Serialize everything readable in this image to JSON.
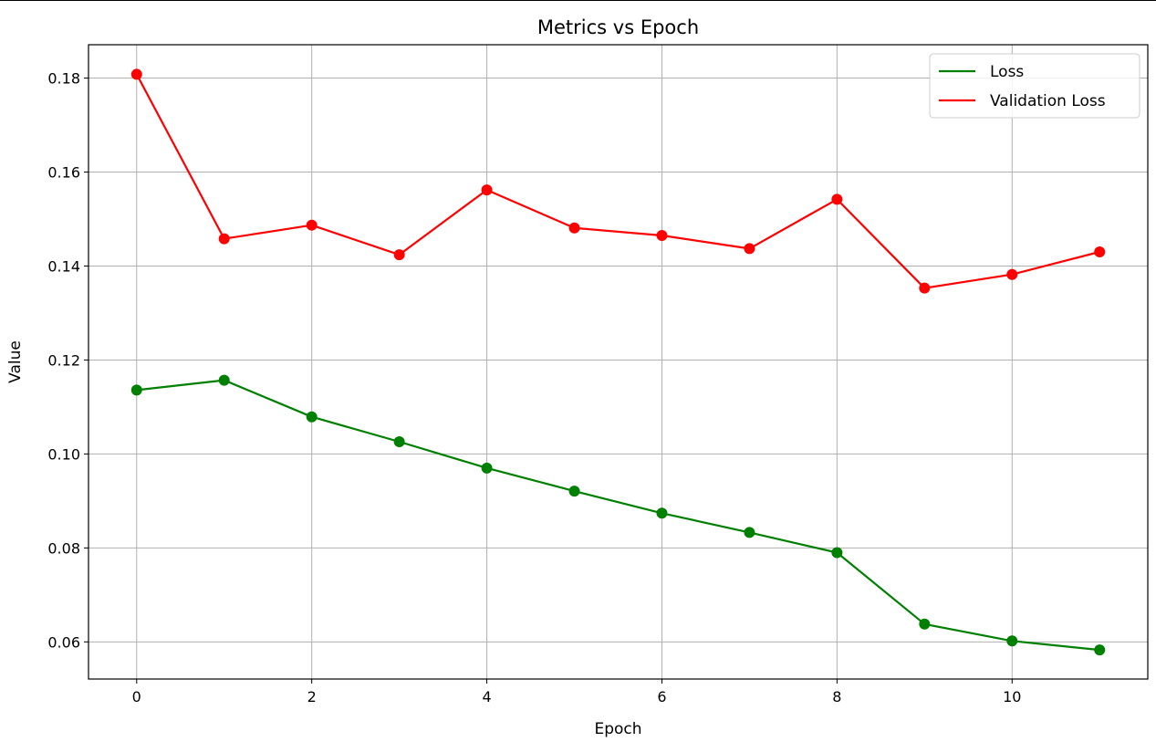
{
  "chart_data": {
    "type": "line",
    "title": "Metrics vs Epoch",
    "xlabel": "Epoch",
    "ylabel": "Value",
    "x": [
      0,
      1,
      2,
      3,
      4,
      5,
      6,
      7,
      8,
      9,
      10,
      11
    ],
    "xlim": [
      -0.55,
      11.55
    ],
    "ylim": [
      0.0521,
      0.1871
    ],
    "xticks": [
      "0",
      "2",
      "4",
      "6",
      "8",
      "10"
    ],
    "xtick_values": [
      0,
      2,
      4,
      6,
      8,
      10
    ],
    "yticks": [
      "0.06",
      "0.08",
      "0.10",
      "0.12",
      "0.14",
      "0.16",
      "0.18"
    ],
    "ytick_values": [
      0.06,
      0.08,
      0.1,
      0.12,
      0.14,
      0.16,
      0.18
    ],
    "grid": true,
    "legend_position": "top-right",
    "series": [
      {
        "name": "Loss",
        "color": "#008000",
        "marker": "circle",
        "values": [
          0.1136,
          0.1157,
          0.1079,
          0.1026,
          0.097,
          0.0921,
          0.0874,
          0.0833,
          0.079,
          0.0638,
          0.0602,
          0.0583
        ]
      },
      {
        "name": "Validation Loss",
        "color": "#ff0000",
        "marker": "circle",
        "values": [
          0.1808,
          0.1458,
          0.1487,
          0.1424,
          0.1562,
          0.1481,
          0.1465,
          0.1437,
          0.1542,
          0.1353,
          0.1382,
          0.143
        ]
      }
    ]
  }
}
